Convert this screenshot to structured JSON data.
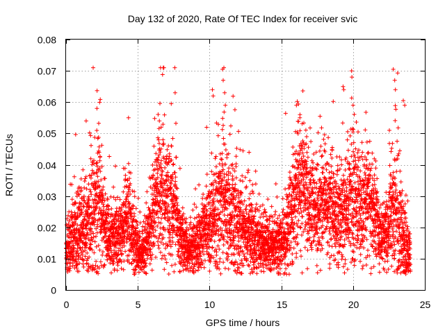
{
  "chart_data": {
    "type": "scatter",
    "title": "Day 132 of 2020, Rate Of TEC Index for receiver svic",
    "xlabel": "GPS time / hours",
    "ylabel": "ROTI / TECUs",
    "xlim": [
      0,
      25
    ],
    "ylim": [
      0,
      0.08
    ],
    "xticks": [
      "0",
      "5",
      "10",
      "15",
      "20",
      "25"
    ],
    "yticks": [
      "0",
      "0.01",
      "0.02",
      "0.03",
      "0.04",
      "0.05",
      "0.06",
      "0.07",
      "0.08"
    ],
    "grid": true,
    "marker": "plus",
    "color": "#ff0000",
    "profile": {
      "x": [
        0,
        0.5,
        1,
        1.5,
        2,
        2.3,
        2.7,
        3,
        3.5,
        4,
        4.4,
        5,
        5.5,
        6,
        6.5,
        6.8,
        7.5,
        8,
        8.5,
        9,
        9.5,
        10,
        10.5,
        11,
        11.5,
        12,
        12.5,
        13,
        13.5,
        14,
        14.5,
        15,
        15.5,
        16,
        16.3,
        17,
        17.5,
        18,
        18.5,
        19,
        19.5,
        20,
        20.5,
        21,
        21.5,
        22,
        22.5,
        23,
        23.5,
        24
      ],
      "center": [
        0.013,
        0.018,
        0.02,
        0.022,
        0.026,
        0.03,
        0.02,
        0.017,
        0.016,
        0.02,
        0.024,
        0.012,
        0.013,
        0.024,
        0.033,
        0.03,
        0.028,
        0.016,
        0.013,
        0.014,
        0.018,
        0.02,
        0.024,
        0.03,
        0.022,
        0.022,
        0.019,
        0.017,
        0.015,
        0.015,
        0.014,
        0.015,
        0.02,
        0.03,
        0.036,
        0.027,
        0.025,
        0.028,
        0.027,
        0.022,
        0.027,
        0.03,
        0.026,
        0.029,
        0.025,
        0.016,
        0.02,
        0.027,
        0.016,
        0.012
      ],
      "spread": [
        0.004,
        0.006,
        0.007,
        0.009,
        0.01,
        0.011,
        0.007,
        0.006,
        0.005,
        0.007,
        0.008,
        0.004,
        0.004,
        0.008,
        0.01,
        0.01,
        0.009,
        0.005,
        0.004,
        0.005,
        0.006,
        0.007,
        0.01,
        0.012,
        0.01,
        0.01,
        0.007,
        0.006,
        0.005,
        0.005,
        0.005,
        0.005,
        0.007,
        0.01,
        0.01,
        0.008,
        0.008,
        0.008,
        0.008,
        0.008,
        0.009,
        0.011,
        0.009,
        0.009,
        0.008,
        0.005,
        0.007,
        0.012,
        0.007,
        0.004
      ]
    },
    "point_count": 5200,
    "outliers": [
      {
        "x": 1.4,
        "y": 0.054
      },
      {
        "x": 2.15,
        "y": 0.058
      },
      {
        "x": 4.35,
        "y": 0.055
      },
      {
        "x": 6.5,
        "y": 0.054
      },
      {
        "x": 7.6,
        "y": 0.063
      },
      {
        "x": 10.2,
        "y": 0.064
      },
      {
        "x": 10.25,
        "y": 0.062
      },
      {
        "x": 10.9,
        "y": 0.0705
      },
      {
        "x": 11.0,
        "y": 0.071
      },
      {
        "x": 10.95,
        "y": 0.067
      },
      {
        "x": 11.05,
        "y": 0.063
      },
      {
        "x": 11.1,
        "y": 0.059
      },
      {
        "x": 12.75,
        "y": 0.044
      },
      {
        "x": 16.05,
        "y": 0.059
      },
      {
        "x": 16.3,
        "y": 0.056
      },
      {
        "x": 17.7,
        "y": 0.0555
      },
      {
        "x": 19.3,
        "y": 0.065
      },
      {
        "x": 19.35,
        "y": 0.064
      },
      {
        "x": 19.9,
        "y": 0.07
      },
      {
        "x": 19.92,
        "y": 0.068
      },
      {
        "x": 20.0,
        "y": 0.059
      },
      {
        "x": 22.8,
        "y": 0.0705
      },
      {
        "x": 22.9,
        "y": 0.067
      },
      {
        "x": 22.95,
        "y": 0.064
      },
      {
        "x": 23.5,
        "y": 0.0605
      },
      {
        "x": 23.6,
        "y": 0.059
      },
      {
        "x": 4.75,
        "y": 0.005
      },
      {
        "x": 10.0,
        "y": 0.006
      },
      {
        "x": 13.6,
        "y": 0.006
      },
      {
        "x": 15.25,
        "y": 0.0055
      },
      {
        "x": 16.45,
        "y": 0.0055
      },
      {
        "x": 21.45,
        "y": 0.0075
      },
      {
        "x": 23.55,
        "y": 0.006
      },
      {
        "x": 0.1,
        "y": 0.0085
      },
      {
        "x": 7.9,
        "y": 0.009
      },
      {
        "x": 2.3,
        "y": 0.007
      }
    ]
  }
}
